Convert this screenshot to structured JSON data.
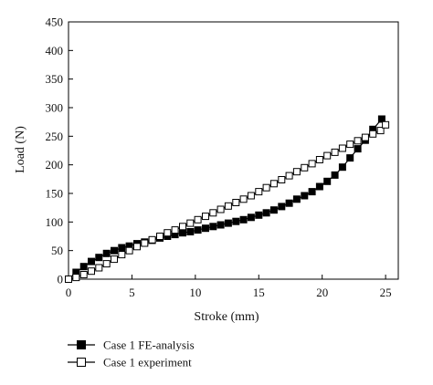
{
  "chart_data": {
    "type": "line",
    "xlabel": "Stroke (mm)",
    "ylabel": "Load (N)",
    "xlim": [
      0,
      26
    ],
    "ylim": [
      0,
      450
    ],
    "xticks": [
      0,
      5,
      10,
      15,
      20,
      25
    ],
    "yticks": [
      0,
      50,
      100,
      150,
      200,
      250,
      300,
      350,
      400,
      450
    ],
    "grid": false,
    "legend_position": "bottom-left, below plot",
    "series": [
      {
        "name": "Case 1 FE-analysis",
        "marker": "filled-square",
        "color": "#000000",
        "x": [
          0,
          0.6,
          1.2,
          1.8,
          2.4,
          3.0,
          3.6,
          4.2,
          4.8,
          5.4,
          6.0,
          6.6,
          7.2,
          7.8,
          8.4,
          9.0,
          9.6,
          10.2,
          10.8,
          11.4,
          12.0,
          12.6,
          13.2,
          13.8,
          14.4,
          15.0,
          15.6,
          16.2,
          16.8,
          17.4,
          18.0,
          18.6,
          19.2,
          19.8,
          20.4,
          21.0,
          21.6,
          22.2,
          22.8,
          23.4,
          24.0,
          24.7
        ],
        "y": [
          0,
          12,
          22,
          31,
          38,
          45,
          50,
          55,
          58,
          62,
          65,
          68,
          72,
          75,
          78,
          81,
          83,
          86,
          89,
          92,
          95,
          98,
          101,
          104,
          108,
          112,
          116,
          121,
          127,
          133,
          140,
          146,
          153,
          162,
          171,
          182,
          196,
          212,
          228,
          243,
          262,
          280
        ]
      },
      {
        "name": "Case 1 experiment",
        "marker": "open-square",
        "color": "#000000",
        "x": [
          0,
          0.6,
          1.2,
          1.8,
          2.4,
          3.0,
          3.6,
          4.2,
          4.8,
          5.4,
          6.0,
          6.6,
          7.2,
          7.8,
          8.4,
          9.0,
          9.6,
          10.2,
          10.8,
          11.4,
          12.0,
          12.6,
          13.2,
          13.8,
          14.4,
          15.0,
          15.6,
          16.2,
          16.8,
          17.4,
          18.0,
          18.6,
          19.2,
          19.8,
          20.4,
          21.0,
          21.6,
          22.2,
          22.8,
          23.4,
          24.0,
          24.6,
          25.0
        ],
        "y": [
          0,
          3,
          8,
          14,
          20,
          27,
          35,
          43,
          50,
          57,
          63,
          69,
          75,
          81,
          86,
          92,
          98,
          104,
          110,
          116,
          122,
          128,
          134,
          140,
          146,
          153,
          160,
          167,
          174,
          181,
          188,
          195,
          202,
          209,
          216,
          222,
          229,
          236,
          242,
          248,
          254,
          260,
          270
        ]
      }
    ]
  }
}
